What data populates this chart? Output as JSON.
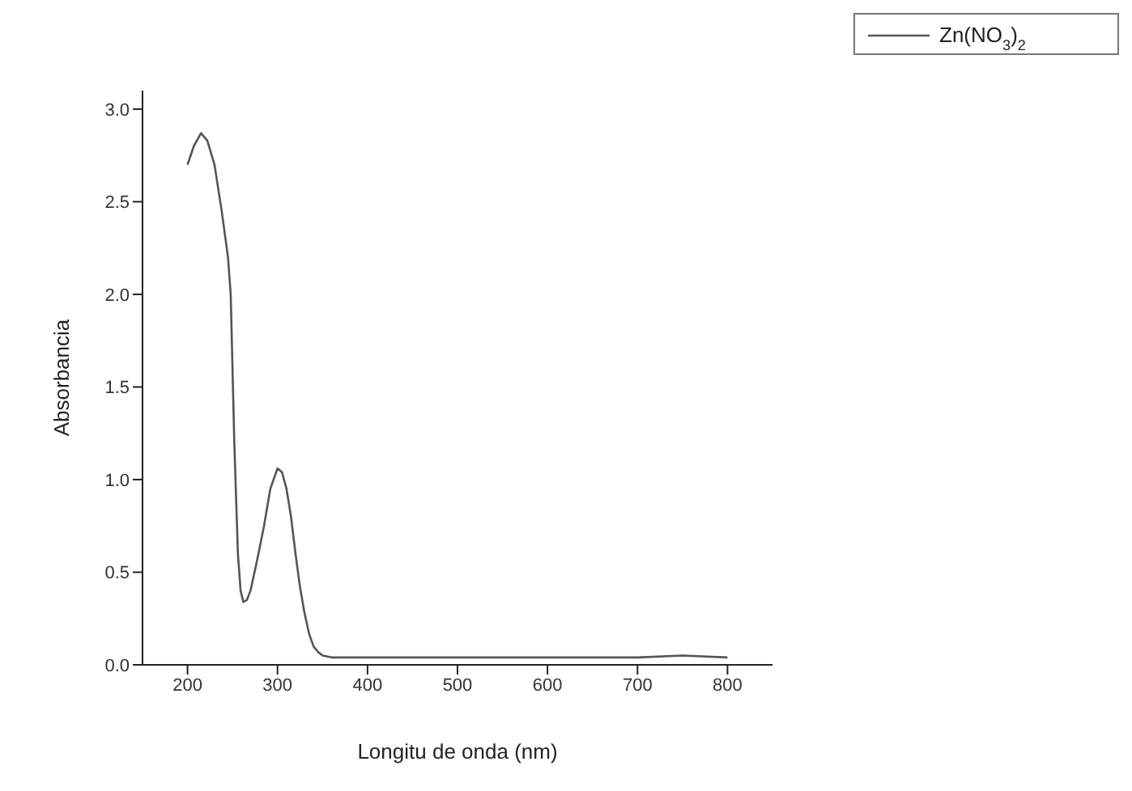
{
  "chart_data": {
    "type": "line",
    "xlabel": "Longitu de onda (nm)",
    "ylabel": "Absorbancia",
    "xlim": [
      150,
      850
    ],
    "xticks": [
      200,
      300,
      400,
      500,
      600,
      700,
      800
    ],
    "ylim": [
      0,
      3.1
    ],
    "yticks": [
      {
        "value": 0,
        "label": "0.0"
      },
      {
        "value": 0.5,
        "label": "0.5"
      },
      {
        "value": 1,
        "label": "1.0"
      },
      {
        "value": 1.5,
        "label": "1.5"
      },
      {
        "value": 2,
        "label": "2.0"
      },
      {
        "value": 2.5,
        "label": "2.5"
      },
      {
        "value": 3,
        "label": "3.0"
      }
    ],
    "grid": false,
    "legend": "top right",
    "marker": "none",
    "line_style": "solid",
    "series": [
      {
        "name": "Zn(NO$_{3}$)$_{2}$",
        "color": "#555555",
        "x": [
          200,
          207,
          215,
          222,
          230,
          238,
          245,
          248,
          252,
          256,
          259,
          262,
          266,
          270,
          278,
          285,
          292,
          300,
          305,
          310,
          315,
          320,
          325,
          330,
          335,
          340,
          345,
          350,
          360,
          370,
          400,
          500,
          600,
          700,
          750,
          800
        ],
        "values": [
          2.7,
          2.8,
          2.87,
          2.83,
          2.7,
          2.45,
          2.2,
          2.0,
          1.2,
          0.6,
          0.4,
          0.34,
          0.35,
          0.4,
          0.58,
          0.75,
          0.95,
          1.06,
          1.04,
          0.95,
          0.8,
          0.6,
          0.42,
          0.28,
          0.17,
          0.1,
          0.07,
          0.05,
          0.04,
          0.04,
          0.04,
          0.04,
          0.04,
          0.04,
          0.05,
          0.04
        ]
      }
    ]
  }
}
